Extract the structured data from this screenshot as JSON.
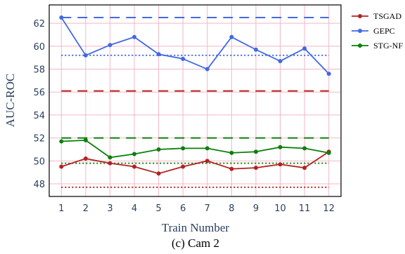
{
  "chart_data": {
    "type": "line",
    "caption": "(c) Cam 2",
    "xlabel": "Train Number",
    "ylabel": "AUC-ROC",
    "x": [
      1,
      2,
      3,
      4,
      5,
      6,
      7,
      8,
      9,
      10,
      11,
      12
    ],
    "xlim": [
      0.5,
      12.5
    ],
    "ylim": [
      46.9,
      63.6
    ],
    "yticks": [
      48,
      50,
      52,
      54,
      56,
      58,
      60,
      62
    ],
    "grid": true,
    "legend_position": "outside-top-right",
    "series": [
      {
        "name": "TSGAD",
        "color": "#b22222",
        "values": [
          49.5,
          50.2,
          49.8,
          49.5,
          48.9,
          49.5,
          50.0,
          49.3,
          49.4,
          49.7,
          49.4,
          50.8
        ],
        "reference_dashed": 56.1,
        "reference_dotted": 47.7
      },
      {
        "name": "GEPC",
        "color": "#4169e1",
        "values": [
          62.5,
          59.2,
          60.1,
          60.8,
          59.3,
          58.9,
          58.0,
          60.8,
          59.7,
          58.7,
          59.8,
          57.6
        ],
        "reference_dashed": 62.5,
        "reference_dotted": 59.2
      },
      {
        "name": "STG-NF",
        "color": "#0a800a",
        "values": [
          51.7,
          51.8,
          50.3,
          50.6,
          51.0,
          51.1,
          51.1,
          50.7,
          50.8,
          51.2,
          51.1,
          50.7
        ],
        "reference_dashed": 52.0,
        "reference_dotted": 49.8
      }
    ]
  }
}
